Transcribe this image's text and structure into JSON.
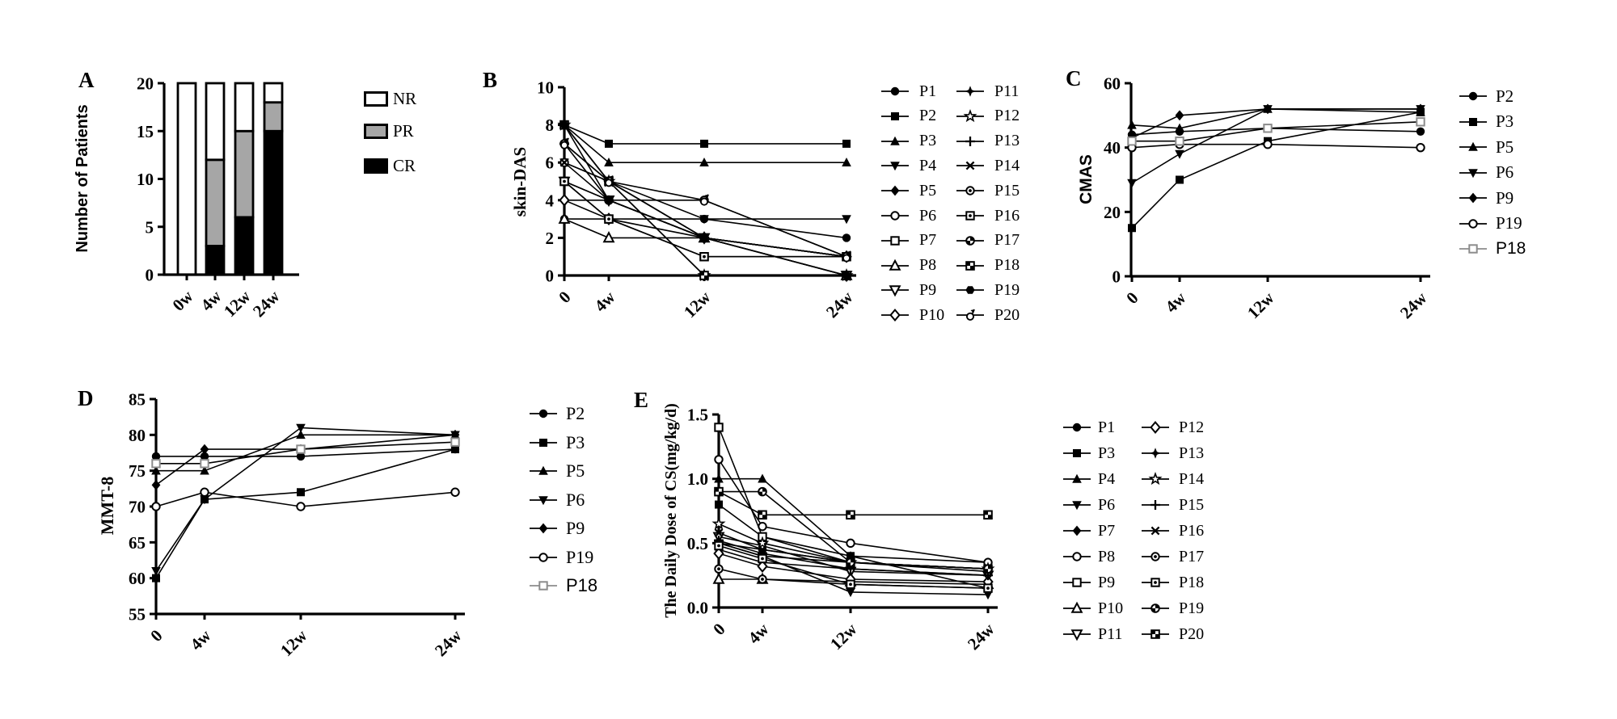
{
  "chart_data": [
    {
      "panel": "A",
      "type": "bar",
      "stacked": true,
      "ylabel": "Number of Patients",
      "categories": [
        "0w",
        "4w",
        "12w",
        "24w"
      ],
      "ylim": [
        0,
        20
      ],
      "yticks": [
        {
          "v": 0,
          "label": "0"
        },
        {
          "v": 5,
          "label": "5"
        },
        {
          "v": 10,
          "label": "10"
        },
        {
          "v": 15,
          "label": "15"
        },
        {
          "v": 20,
          "label": "20"
        }
      ],
      "grid": false,
      "legend_position": "right",
      "legend_order": [
        "NR",
        "PR",
        "CR"
      ],
      "series": [
        {
          "name": "CR",
          "fill": "#000000",
          "values": [
            0,
            3,
            6,
            15
          ]
        },
        {
          "name": "PR",
          "fill": "#a6a6a6",
          "values": [
            0,
            9,
            9,
            3
          ]
        },
        {
          "name": "NR",
          "fill": "#ffffff",
          "values": [
            20,
            8,
            5,
            2
          ]
        }
      ]
    },
    {
      "panel": "B",
      "type": "line",
      "ylabel": "skin-DAS",
      "categories": [
        "0",
        "4w",
        "12w",
        "24w"
      ],
      "x_weeks": [
        0,
        4,
        12,
        24
      ],
      "ylim": [
        0,
        10
      ],
      "yticks": [
        {
          "v": 0,
          "label": "0"
        },
        {
          "v": 2,
          "label": "2"
        },
        {
          "v": 4,
          "label": "4"
        },
        {
          "v": 6,
          "label": "6"
        },
        {
          "v": 8,
          "label": "8"
        },
        {
          "v": 10,
          "label": "10"
        }
      ],
      "grid": false,
      "legend_position": "right",
      "legend_columns": 2,
      "series": [
        {
          "name": "P1",
          "marker": "filled-circle",
          "values": [
            3,
            3,
            3,
            2
          ]
        },
        {
          "name": "P2",
          "marker": "filled-square",
          "values": [
            8,
            7,
            7,
            7
          ]
        },
        {
          "name": "P3",
          "marker": "filled-triangle-up",
          "values": [
            8,
            6,
            6,
            6
          ]
        },
        {
          "name": "P4",
          "marker": "filled-triangle-down",
          "values": [
            6,
            5,
            3,
            3
          ]
        },
        {
          "name": "P5",
          "marker": "filled-diamond",
          "values": [
            4,
            4,
            2,
            1
          ]
        },
        {
          "name": "P6",
          "marker": "open-circle",
          "values": [
            6,
            4,
            4,
            1
          ]
        },
        {
          "name": "P7",
          "marker": "open-square",
          "values": [
            5,
            3,
            1,
            1
          ]
        },
        {
          "name": "P8",
          "marker": "open-triangle-up",
          "values": [
            3,
            2,
            2,
            0
          ]
        },
        {
          "name": "P9",
          "marker": "open-triangle-down",
          "values": [
            5,
            4,
            2,
            0
          ]
        },
        {
          "name": "P10",
          "marker": "open-diamond",
          "values": [
            4,
            3,
            2,
            1
          ]
        },
        {
          "name": "P11",
          "marker": "star4-filled",
          "values": [
            8,
            5,
            2,
            1
          ]
        },
        {
          "name": "P12",
          "marker": "star5-open",
          "values": [
            8,
            5,
            0,
            0
          ]
        },
        {
          "name": "P13",
          "marker": "plus",
          "values": [
            7,
            5,
            2,
            1
          ]
        },
        {
          "name": "P14",
          "marker": "cross",
          "values": [
            6,
            5,
            2,
            0
          ]
        },
        {
          "name": "P15",
          "marker": "circle-dot",
          "values": [
            5,
            4,
            2,
            1
          ]
        },
        {
          "name": "P16",
          "marker": "square-dot",
          "values": [
            5,
            3,
            1,
            1
          ]
        },
        {
          "name": "P17",
          "marker": "circle-checker",
          "values": [
            7,
            4,
            2,
            1
          ]
        },
        {
          "name": "P18",
          "marker": "square-checker",
          "values": [
            8,
            5,
            0,
            0
          ]
        },
        {
          "name": "P19",
          "marker": "hexagon-filled",
          "values": [
            8,
            4,
            2,
            0
          ]
        },
        {
          "name": "P20",
          "marker": "circle-flag",
          "values": [
            7,
            5,
            4,
            1
          ]
        }
      ]
    },
    {
      "panel": "C",
      "type": "line",
      "ylabel": "CMAS",
      "categories": [
        "0",
        "4w",
        "12w",
        "24w"
      ],
      "x_weeks": [
        0,
        4,
        12,
        24
      ],
      "ylim": [
        0,
        60
      ],
      "yticks": [
        {
          "v": 0,
          "label": "0"
        },
        {
          "v": 20,
          "label": "20"
        },
        {
          "v": 40,
          "label": "40"
        },
        {
          "v": 60,
          "label": "60"
        }
      ],
      "grid": false,
      "legend_position": "right",
      "legend_columns": 1,
      "series": [
        {
          "name": "P2",
          "marker": "filled-circle",
          "values": [
            44,
            45,
            46,
            45
          ]
        },
        {
          "name": "P3",
          "marker": "filled-square",
          "values": [
            15,
            30,
            42,
            51
          ]
        },
        {
          "name": "P5",
          "marker": "filled-triangle-up",
          "values": [
            47,
            46,
            52,
            51
          ]
        },
        {
          "name": "P6",
          "marker": "filled-triangle-down",
          "values": [
            29,
            38,
            52,
            52
          ]
        },
        {
          "name": "P9",
          "marker": "filled-diamond",
          "values": [
            43,
            50,
            52,
            52
          ]
        },
        {
          "name": "P19",
          "marker": "open-circle",
          "values": [
            40,
            41,
            41,
            40
          ]
        },
        {
          "name": "P18",
          "marker": "open-square",
          "marker_color": "#8c8c8c",
          "label_font": "sans",
          "values": [
            42,
            42,
            46,
            48
          ]
        }
      ]
    },
    {
      "panel": "D",
      "type": "line",
      "ylabel": "MMT-8",
      "categories": [
        "0",
        "4w",
        "12w",
        "24w"
      ],
      "x_weeks": [
        0,
        4,
        12,
        24
      ],
      "ylim": [
        55,
        85
      ],
      "yticks": [
        {
          "v": 55,
          "label": "55"
        },
        {
          "v": 60,
          "label": "60"
        },
        {
          "v": 65,
          "label": "65"
        },
        {
          "v": 70,
          "label": "70"
        },
        {
          "v": 75,
          "label": "75"
        },
        {
          "v": 80,
          "label": "80"
        },
        {
          "v": 85,
          "label": "85"
        }
      ],
      "grid": false,
      "legend_position": "right",
      "legend_columns": 1,
      "series": [
        {
          "name": "P2",
          "marker": "filled-circle",
          "values": [
            77,
            77,
            77,
            78
          ]
        },
        {
          "name": "P3",
          "marker": "filled-square",
          "values": [
            60,
            71,
            72,
            78
          ]
        },
        {
          "name": "P5",
          "marker": "filled-triangle-up",
          "values": [
            75,
            75,
            80,
            80
          ]
        },
        {
          "name": "P6",
          "marker": "filled-triangle-down",
          "values": [
            61,
            71,
            81,
            80
          ]
        },
        {
          "name": "P9",
          "marker": "filled-diamond",
          "values": [
            73,
            78,
            78,
            80
          ]
        },
        {
          "name": "P19",
          "marker": "open-circle",
          "values": [
            70,
            72,
            70,
            72
          ]
        },
        {
          "name": "P18",
          "marker": "open-square",
          "marker_color": "#8c8c8c",
          "label_font": "sans",
          "values": [
            76,
            76,
            78,
            79
          ]
        }
      ]
    },
    {
      "panel": "E",
      "type": "line",
      "ylabel": "The Daily Dose of CS(mg/kg/d)",
      "categories": [
        "0",
        "4w",
        "12w",
        "24w"
      ],
      "x_weeks": [
        0,
        4,
        12,
        24
      ],
      "ylim": [
        0,
        1.5
      ],
      "yticks": [
        {
          "v": 0,
          "label": "0.0"
        },
        {
          "v": 0.5,
          "label": "0.5"
        },
        {
          "v": 1.0,
          "label": "1.0"
        },
        {
          "v": 1.5,
          "label": "1.5"
        }
      ],
      "grid": false,
      "legend_position": "right",
      "legend_columns": 2,
      "series": [
        {
          "name": "P1",
          "marker": "filled-circle",
          "values": [
            0.5,
            0.45,
            0.35,
            0.3
          ]
        },
        {
          "name": "P3",
          "marker": "filled-square",
          "values": [
            0.8,
            0.55,
            0.4,
            0.15
          ]
        },
        {
          "name": "P4",
          "marker": "filled-triangle-up",
          "values": [
            1.0,
            1.0,
            0.4,
            0.35
          ]
        },
        {
          "name": "P6",
          "marker": "filled-triangle-down",
          "values": [
            0.5,
            0.4,
            0.12,
            0.1
          ]
        },
        {
          "name": "P7",
          "marker": "filled-diamond",
          "values": [
            0.45,
            0.35,
            0.3,
            0.25
          ]
        },
        {
          "name": "P8",
          "marker": "open-circle",
          "values": [
            1.15,
            0.63,
            0.5,
            0.35
          ]
        },
        {
          "name": "P9",
          "marker": "open-square",
          "values": [
            1.4,
            0.55,
            0.35,
            0.3
          ]
        },
        {
          "name": "P10",
          "marker": "open-triangle-up",
          "values": [
            0.22,
            0.22,
            0.2,
            0.18
          ]
        },
        {
          "name": "P11",
          "marker": "open-triangle-down",
          "values": [
            0.55,
            0.48,
            0.28,
            0.25
          ]
        },
        {
          "name": "P12",
          "marker": "open-diamond",
          "values": [
            0.42,
            0.32,
            0.22,
            0.2
          ]
        },
        {
          "name": "P13",
          "marker": "star4-filled",
          "values": [
            0.5,
            0.4,
            0.35,
            0.3
          ]
        },
        {
          "name": "P14",
          "marker": "star5-open",
          "values": [
            0.65,
            0.5,
            0.35,
            0.3
          ]
        },
        {
          "name": "P15",
          "marker": "plus",
          "values": [
            0.52,
            0.42,
            0.3,
            0.25
          ]
        },
        {
          "name": "P16",
          "marker": "cross",
          "values": [
            0.58,
            0.45,
            0.35,
            0.28
          ]
        },
        {
          "name": "P17",
          "marker": "circle-dot",
          "values": [
            0.3,
            0.22,
            0.18,
            0.15
          ]
        },
        {
          "name": "P18",
          "marker": "square-dot",
          "values": [
            0.48,
            0.38,
            0.18,
            0.15
          ]
        },
        {
          "name": "P19",
          "marker": "circle-checker",
          "values": [
            0.9,
            0.9,
            0.35,
            0.3
          ]
        },
        {
          "name": "P20",
          "marker": "square-checker",
          "values": [
            0.9,
            0.72,
            0.72,
            0.72
          ]
        }
      ]
    }
  ],
  "colors": {
    "ink": "#000000",
    "pr_gray": "#a6a6a6",
    "p18_gray": "#8c8c8c",
    "background": "#ffffff"
  }
}
